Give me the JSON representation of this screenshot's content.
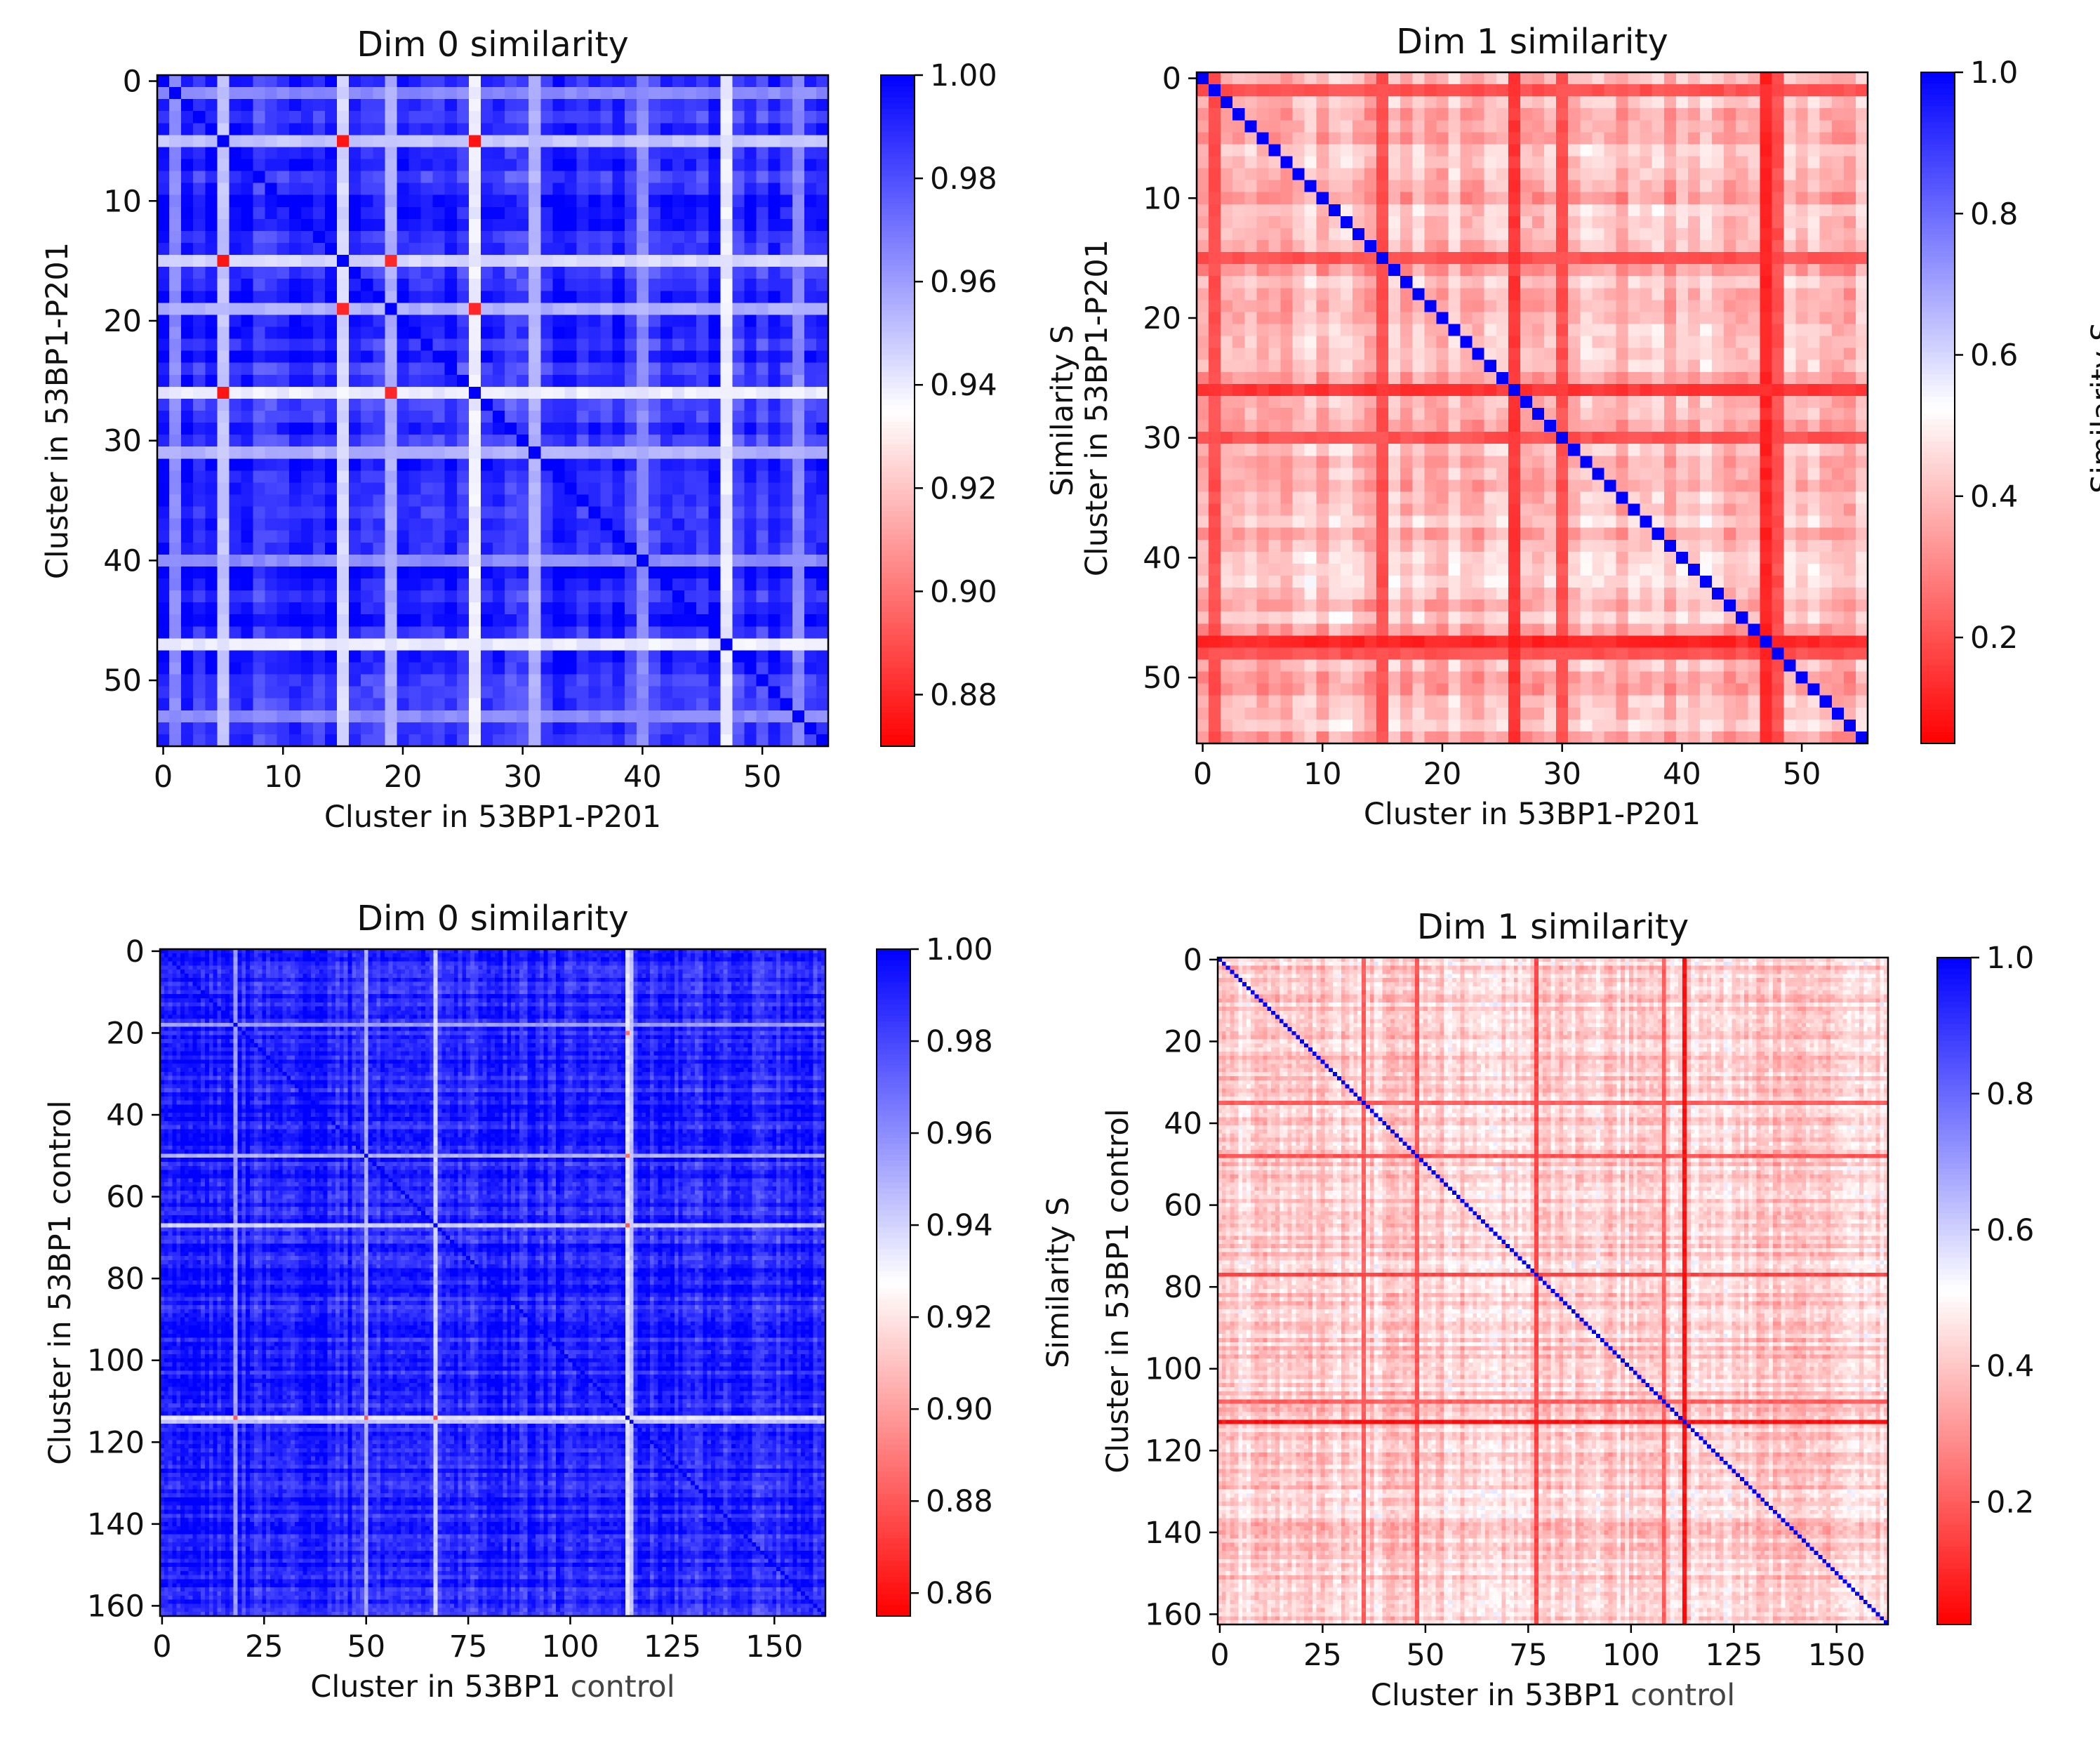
{
  "chart_data": [
    {
      "type": "heatmap",
      "title": "Dim 0 similarity",
      "xlabel": "Cluster in 53BP1-P201",
      "ylabel": "Cluster in 53BP1-P201",
      "n": 56,
      "xlim": [
        0,
        55
      ],
      "ylim": [
        0,
        55
      ],
      "xticks": [
        0,
        10,
        20,
        30,
        40,
        50
      ],
      "yticks": [
        0,
        10,
        20,
        30,
        40,
        50
      ],
      "xtick_labels": [
        "0",
        "10",
        "20",
        "30",
        "40",
        "50"
      ],
      "ytick_labels": [
        "0",
        "10",
        "20",
        "30",
        "40",
        "50"
      ],
      "colorbar": {
        "label": "Similarity S",
        "range": [
          0.87,
          1.0
        ],
        "ticks": [
          0.88,
          0.9,
          0.92,
          0.94,
          0.96,
          0.98,
          1.0
        ],
        "tick_labels": [
          "0.88",
          "0.90",
          "0.92",
          "0.94",
          "0.96",
          "0.98",
          "1.00"
        ],
        "colormap": [
          "#ff0000",
          "#ffffff",
          "#0000ff"
        ]
      },
      "base_similarity": 0.99,
      "diagonal": 1.0,
      "bright_lines": [
        {
          "index": 1,
          "value": 0.965
        },
        {
          "index": 5,
          "value": 0.95
        },
        {
          "index": 15,
          "value": 0.945
        },
        {
          "index": 19,
          "value": 0.955
        },
        {
          "index": 26,
          "value": 0.94
        },
        {
          "index": 31,
          "value": 0.955
        },
        {
          "index": 40,
          "value": 0.965
        },
        {
          "index": 47,
          "value": 0.94
        },
        {
          "index": 53,
          "value": 0.965
        }
      ],
      "hot_spots": [
        {
          "row": 5,
          "col": 15,
          "value": 0.875
        },
        {
          "row": 5,
          "col": 26,
          "value": 0.875
        },
        {
          "row": 15,
          "col": 5,
          "value": 0.875
        },
        {
          "row": 15,
          "col": 19,
          "value": 0.88
        },
        {
          "row": 19,
          "col": 15,
          "value": 0.88
        },
        {
          "row": 19,
          "col": 26,
          "value": 0.88
        },
        {
          "row": 26,
          "col": 5,
          "value": 0.875
        },
        {
          "row": 26,
          "col": 19,
          "value": 0.88
        }
      ]
    },
    {
      "type": "heatmap",
      "title": "Dim 1 similarity",
      "xlabel": "Cluster in 53BP1-P201",
      "ylabel": "Cluster in 53BP1-P201",
      "n": 56,
      "xlim": [
        0,
        55
      ],
      "ylim": [
        0,
        55
      ],
      "xticks": [
        0,
        10,
        20,
        30,
        40,
        50
      ],
      "yticks": [
        0,
        10,
        20,
        30,
        40,
        50
      ],
      "xtick_labels": [
        "0",
        "10",
        "20",
        "30",
        "40",
        "50"
      ],
      "ytick_labels": [
        "0",
        "10",
        "20",
        "30",
        "40",
        "50"
      ],
      "colorbar": {
        "label": "Similarity S",
        "range": [
          0.05,
          1.0
        ],
        "ticks": [
          0.2,
          0.4,
          0.6,
          0.8,
          1.0
        ],
        "tick_labels": [
          "0.2",
          "0.4",
          "0.6",
          "0.8",
          "1.0"
        ],
        "colormap": [
          "#ff0000",
          "#ffffff",
          "#0000ff"
        ]
      },
      "base_similarity": 0.4,
      "diagonal": 1.0,
      "bright_lines": [
        {
          "index": 1,
          "value": 0.2
        },
        {
          "index": 15,
          "value": 0.2
        },
        {
          "index": 26,
          "value": 0.15
        },
        {
          "index": 30,
          "value": 0.2
        },
        {
          "index": 47,
          "value": 0.12
        },
        {
          "index": 48,
          "value": 0.2
        }
      ],
      "hot_spots": []
    },
    {
      "type": "heatmap",
      "title": "Dim 0 similarity",
      "xlabel_parts": [
        "Cluster in 53BP1 ",
        "control"
      ],
      "ylabel": "Cluster in 53BP1 control",
      "n": 163,
      "xlim": [
        0,
        162
      ],
      "ylim": [
        0,
        162
      ],
      "xticks": [
        0,
        25,
        50,
        75,
        100,
        125,
        150
      ],
      "yticks": [
        0,
        20,
        40,
        60,
        80,
        100,
        120,
        140,
        160
      ],
      "xtick_labels": [
        "0",
        "25",
        "50",
        "75",
        "100",
        "125",
        "150"
      ],
      "ytick_labels": [
        "0",
        "20",
        "40",
        "60",
        "80",
        "100",
        "120",
        "140",
        "160"
      ],
      "colorbar": {
        "label": "Similarity S",
        "range": [
          0.855,
          1.0
        ],
        "ticks": [
          0.86,
          0.88,
          0.9,
          0.92,
          0.94,
          0.96,
          0.98,
          1.0
        ],
        "tick_labels": [
          "0.86",
          "0.88",
          "0.90",
          "0.92",
          "0.94",
          "0.96",
          "0.98",
          "1.00"
        ],
        "colormap": [
          "#ff0000",
          "#ffffff",
          "#0000ff"
        ]
      },
      "base_similarity": 0.99,
      "diagonal": 1.0,
      "bright_lines": [
        {
          "index": 18,
          "value": 0.955
        },
        {
          "index": 50,
          "value": 0.95
        },
        {
          "index": 67,
          "value": 0.94
        },
        {
          "index": 114,
          "value": 0.935
        },
        {
          "index": 115,
          "value": 0.945
        }
      ],
      "hot_spots": [
        {
          "row": 114,
          "col": 18,
          "value": 0.88
        },
        {
          "row": 114,
          "col": 50,
          "value": 0.88
        },
        {
          "row": 114,
          "col": 67,
          "value": 0.875
        },
        {
          "row": 67,
          "col": 114,
          "value": 0.88
        },
        {
          "row": 50,
          "col": 114,
          "value": 0.885
        },
        {
          "row": 20,
          "col": 114,
          "value": 0.885
        }
      ]
    },
    {
      "type": "heatmap",
      "title": "Dim 1 similarity",
      "xlabel_parts": [
        "Cluster in 53BP1 ",
        "control"
      ],
      "ylabel": "Cluster in 53BP1 control",
      "n": 163,
      "xlim": [
        0,
        162
      ],
      "ylim": [
        0,
        162
      ],
      "xticks": [
        0,
        25,
        50,
        75,
        100,
        125,
        150
      ],
      "yticks": [
        0,
        20,
        40,
        60,
        80,
        100,
        120,
        140,
        160
      ],
      "xtick_labels": [
        "0",
        "25",
        "50",
        "75",
        "100",
        "125",
        "150"
      ],
      "ytick_labels": [
        "0",
        "20",
        "40",
        "60",
        "80",
        "100",
        "120",
        "140",
        "160"
      ],
      "colorbar": {
        "label": "Similarity S",
        "range": [
          0.02,
          1.0
        ],
        "ticks": [
          0.2,
          0.4,
          0.6,
          0.8,
          1.0
        ],
        "tick_labels": [
          "0.2",
          "0.4",
          "0.6",
          "0.8",
          "1.0"
        ],
        "colormap": [
          "#ff0000",
          "#ffffff",
          "#0000ff"
        ]
      },
      "base_similarity": 0.42,
      "diagonal": 1.0,
      "bright_lines": [
        {
          "index": 35,
          "value": 0.2
        },
        {
          "index": 48,
          "value": 0.18
        },
        {
          "index": 77,
          "value": 0.15
        },
        {
          "index": 108,
          "value": 0.2
        },
        {
          "index": 113,
          "value": 0.05
        }
      ],
      "hot_spots": []
    }
  ]
}
